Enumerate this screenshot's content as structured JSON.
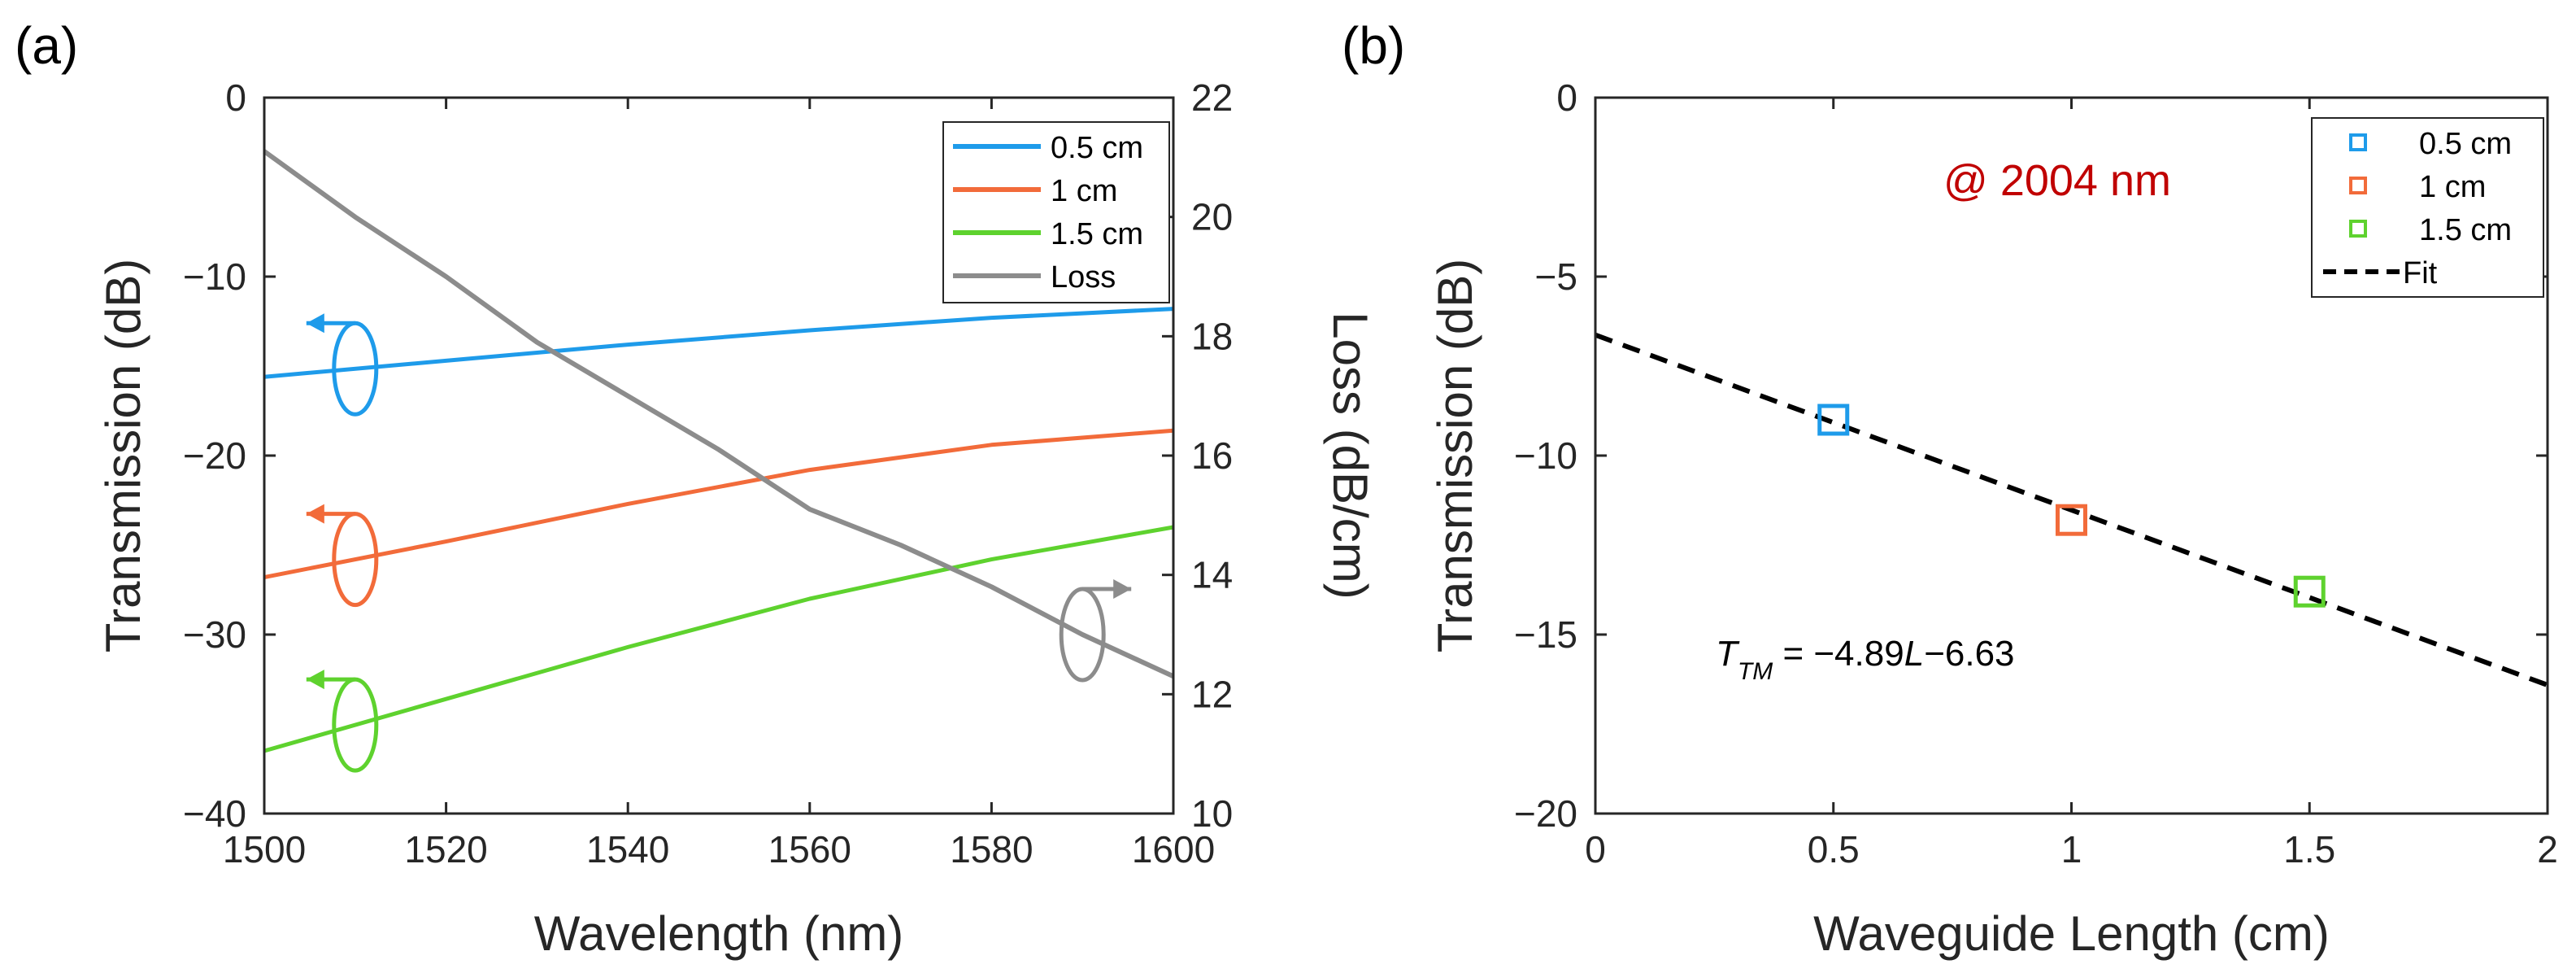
{
  "chart_data": [
    {
      "panel_label": "(a)",
      "type": "line",
      "xlabel": "Wavelength (nm)",
      "ylabel": "Transmission (dB)",
      "y2label": "Loss (dB/cm)",
      "xlim": [
        1500,
        1600
      ],
      "ylim": [
        -40,
        0
      ],
      "y2lim": [
        10,
        22
      ],
      "xticks": [
        1500,
        1520,
        1540,
        1560,
        1580,
        1600
      ],
      "yticks": [
        0,
        -10,
        -20,
        -30,
        -40
      ],
      "y2ticks": [
        22,
        20,
        18,
        16,
        14,
        12,
        10
      ],
      "legend_position": "top-right",
      "series": [
        {
          "name": "0.5 cm",
          "axis": "left",
          "color": "#1E9BEA",
          "x": [
            1500,
            1520,
            1540,
            1560,
            1580,
            1600
          ],
          "values": [
            -15.6,
            -14.7,
            -13.8,
            -13.0,
            -12.3,
            -11.8
          ]
        },
        {
          "name": "1 cm",
          "axis": "left",
          "color": "#F26B3A",
          "x": [
            1500,
            1520,
            1540,
            1560,
            1580,
            1600
          ],
          "values": [
            -26.8,
            -24.8,
            -22.7,
            -20.8,
            -19.4,
            -18.6
          ]
        },
        {
          "name": "1.5 cm",
          "axis": "left",
          "color": "#5ED22E",
          "x": [
            1500,
            1520,
            1540,
            1560,
            1580,
            1600
          ],
          "values": [
            -36.5,
            -33.6,
            -30.7,
            -28.0,
            -25.8,
            -24.0
          ]
        },
        {
          "name": "Loss",
          "axis": "right",
          "color": "#8C8C8C",
          "x": [
            1500,
            1510,
            1520,
            1530,
            1540,
            1550,
            1560,
            1570,
            1580,
            1590,
            1600
          ],
          "values": [
            21.1,
            20.0,
            19.0,
            17.9,
            17.0,
            16.1,
            15.1,
            14.5,
            13.8,
            13.0,
            12.3
          ]
        }
      ]
    },
    {
      "panel_label": "(b)",
      "type": "scatter",
      "xlabel": "Waveguide Length (cm)",
      "ylabel": "Transmission (dB)",
      "xlim": [
        0,
        2
      ],
      "ylim": [
        -20,
        0
      ],
      "xticks": [
        0,
        0.5,
        1,
        1.5,
        2
      ],
      "yticks": [
        0,
        -5,
        -10,
        -15,
        -20
      ],
      "legend_position": "top-right",
      "annotation": "@ 2004 nm",
      "annotation_color": "#C00000",
      "equation": {
        "T": "T",
        "sub": "TM",
        "rest1": " = −4.89",
        "L": "L",
        "rest2": "−6.63"
      },
      "series": [
        {
          "name": "0.5 cm",
          "color": "#1E9BEA",
          "x": [
            0.5
          ],
          "values": [
            -9.0
          ]
        },
        {
          "name": "1 cm",
          "color": "#F26B3A",
          "x": [
            1.0
          ],
          "values": [
            -11.8
          ]
        },
        {
          "name": "1.5 cm",
          "color": "#5ED22E",
          "x": [
            1.5
          ],
          "values": [
            -13.8
          ]
        },
        {
          "name": "Fit",
          "color": "#000000",
          "style": "dashed",
          "slope": -4.89,
          "intercept": -6.63
        }
      ]
    }
  ]
}
